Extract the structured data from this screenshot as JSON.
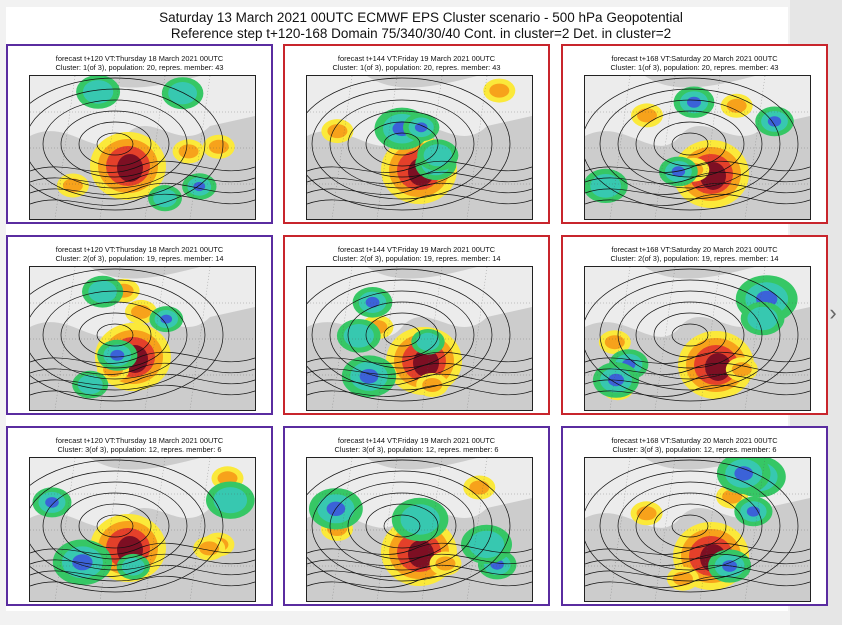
{
  "header": {
    "line1": "Saturday 13 March 2021 00UTC ECMWF EPS Cluster scenario - 500 hPa Geopotential",
    "line2": "Reference step t+120-168 Domain 75/340/30/40 Cont. in cluster=2 Det. in cluster=2"
  },
  "nav": {
    "prev_label": "‹",
    "next_label": "›",
    "prev_icon": "chevron-left-icon",
    "next_icon": "chevron-right-icon"
  },
  "colors": {
    "border_purple": "#5a2ca0",
    "border_red": "#c8252c",
    "anom_dark_red": "#7d0f23",
    "anom_red": "#e4402a",
    "anom_orange": "#f7a21b",
    "anom_yellow": "#fbe93a",
    "anom_green": "#36c765",
    "anom_teal": "#37c8b0",
    "anom_blue": "#3b62d8",
    "land_gray": "#b3b3b3"
  },
  "panels": [
    {
      "line1": "forecast t+120 VT:Thursday 18 March 2021 00UTC",
      "line2": "Cluster: 1(of 3), population: 20, repres. member: 43",
      "frame": "purple"
    },
    {
      "line1": "forecast t+144 VT:Friday 19 March 2021 00UTC",
      "line2": "Cluster: 1(of 3), population: 20, repres. member: 43",
      "frame": "red"
    },
    {
      "line1": "forecast t+168 VT:Saturday 20 March 2021 00UTC",
      "line2": "Cluster: 1(of 3), population: 20, repres. member: 43",
      "frame": "red"
    },
    {
      "line1": "forecast t+120 VT:Thursday 18 March 2021 00UTC",
      "line2": "Cluster: 2(of 3), population: 19, repres. member: 14",
      "frame": "purple"
    },
    {
      "line1": "forecast t+144 VT:Friday 19 March 2021 00UTC",
      "line2": "Cluster: 2(of 3), population: 19, repres. member: 14",
      "frame": "red"
    },
    {
      "line1": "forecast t+168 VT:Saturday 20 March 2021 00UTC",
      "line2": "Cluster: 2(of 3), population: 19, repres. member: 14",
      "frame": "red"
    },
    {
      "line1": "forecast t+120 VT:Thursday 18 March 2021 00UTC",
      "line2": "Cluster: 3(of 3), population: 12, repres. member: 6",
      "frame": "purple"
    },
    {
      "line1": "forecast t+144 VT:Friday 19 March 2021 00UTC",
      "line2": "Cluster: 3(of 3), population: 12, repres. member: 6",
      "frame": "purple"
    },
    {
      "line1": "forecast t+168 VT:Saturday 20 March 2021 00UTC",
      "line2": "Cluster: 3(of 3), population: 12, repres. member: 6",
      "frame": "purple"
    }
  ]
}
